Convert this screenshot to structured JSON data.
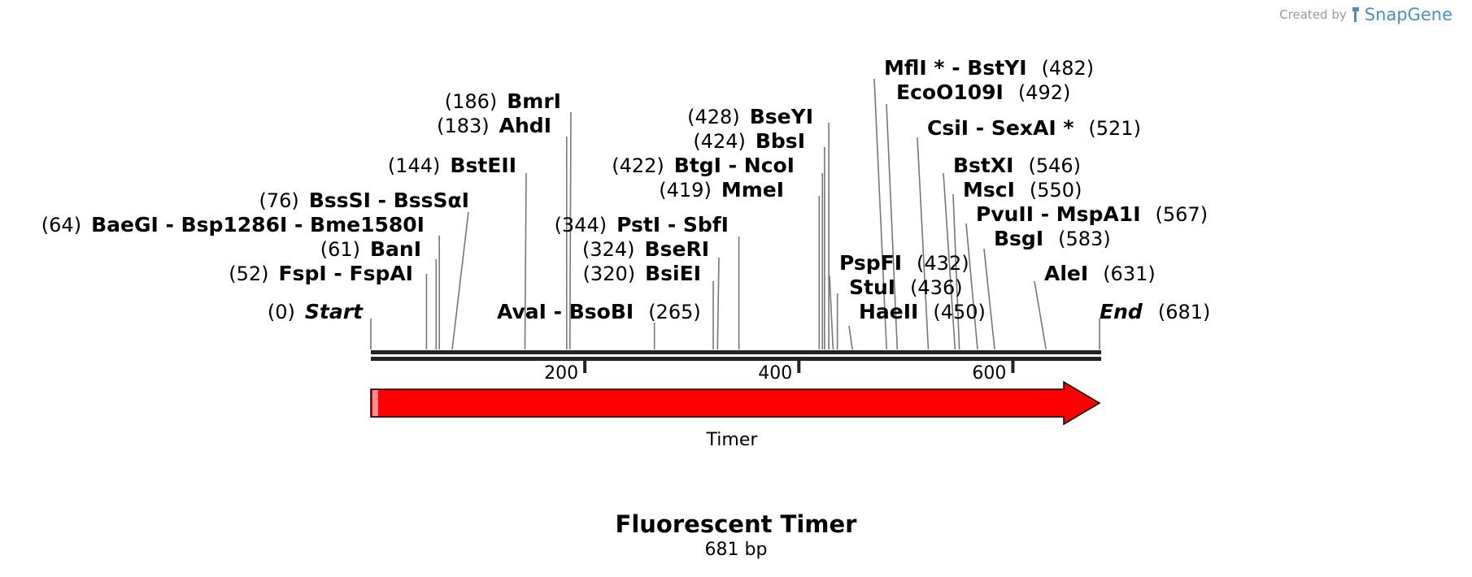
{
  "credit": {
    "prefix": "Created by",
    "brand": "SnapGene"
  },
  "map": {
    "title": "Fluorescent Timer",
    "subtitle": "681 bp",
    "length_bp": 681,
    "ticks": [
      200,
      400,
      600
    ],
    "feature": {
      "name": "Timer",
      "start": 0,
      "end": 681,
      "color": "#ff0000",
      "direction": "forward"
    },
    "sites": [
      {
        "label": "Start",
        "pos": "(0)",
        "bp": 0,
        "style": "italic",
        "side": "left"
      },
      {
        "label": "FspI - FspAI",
        "pos": "(52)",
        "bp": 52,
        "side": "left"
      },
      {
        "label": "BanI",
        "pos": "(61)",
        "bp": 61,
        "side": "left"
      },
      {
        "label": "BaeGI - Bsp1286I - Bme1580I",
        "pos": "(64)",
        "bp": 64,
        "side": "left"
      },
      {
        "label": "BssSI - BssSαI",
        "pos": "(76)",
        "bp": 76,
        "side": "left"
      },
      {
        "label": "BstEII",
        "pos": "(144)",
        "bp": 144,
        "side": "left"
      },
      {
        "label": "AhdI",
        "pos": "(183)",
        "bp": 183,
        "side": "left"
      },
      {
        "label": "BmrI",
        "pos": "(186)",
        "bp": 186,
        "side": "left"
      },
      {
        "label": "AvaI - BsoBI",
        "pos": "(265)",
        "bp": 265,
        "side": "right"
      },
      {
        "label": "BsiEI",
        "pos": "(320)",
        "bp": 320,
        "side": "left"
      },
      {
        "label": "BseRI",
        "pos": "(324)",
        "bp": 324,
        "side": "left"
      },
      {
        "label": "PstI - SbfI",
        "pos": "(344)",
        "bp": 344,
        "side": "left"
      },
      {
        "label": "MmeI",
        "pos": "(419)",
        "bp": 419,
        "side": "left"
      },
      {
        "label": "BtgI - NcoI",
        "pos": "(422)",
        "bp": 422,
        "side": "left"
      },
      {
        "label": "BbsI",
        "pos": "(424)",
        "bp": 424,
        "side": "left"
      },
      {
        "label": "BseYI",
        "pos": "(428)",
        "bp": 428,
        "side": "left"
      },
      {
        "label": "PspFI",
        "pos": "(432)",
        "bp": 432,
        "side": "right"
      },
      {
        "label": "StuI",
        "pos": "(436)",
        "bp": 436,
        "side": "right"
      },
      {
        "label": "HaeII",
        "pos": "(450)",
        "bp": 450,
        "side": "right"
      },
      {
        "label": "MflI * - BstYI",
        "pos": "(482)",
        "bp": 482,
        "side": "right"
      },
      {
        "label": "EcoO109I",
        "pos": "(492)",
        "bp": 492,
        "side": "right"
      },
      {
        "label": "CsiI - SexAI *",
        "pos": "(521)",
        "bp": 521,
        "side": "right"
      },
      {
        "label": "BstXI",
        "pos": "(546)",
        "bp": 546,
        "side": "right"
      },
      {
        "label": "MscI",
        "pos": "(550)",
        "bp": 550,
        "side": "right"
      },
      {
        "label": "PvuII - MspA1I",
        "pos": "(567)",
        "bp": 567,
        "side": "right"
      },
      {
        "label": "BsgI",
        "pos": "(583)",
        "bp": 583,
        "side": "right"
      },
      {
        "label": "AleI",
        "pos": "(631)",
        "bp": 631,
        "side": "right"
      },
      {
        "label": "End",
        "pos": "(681)",
        "bp": 681,
        "style": "italic",
        "side": "right"
      }
    ]
  }
}
